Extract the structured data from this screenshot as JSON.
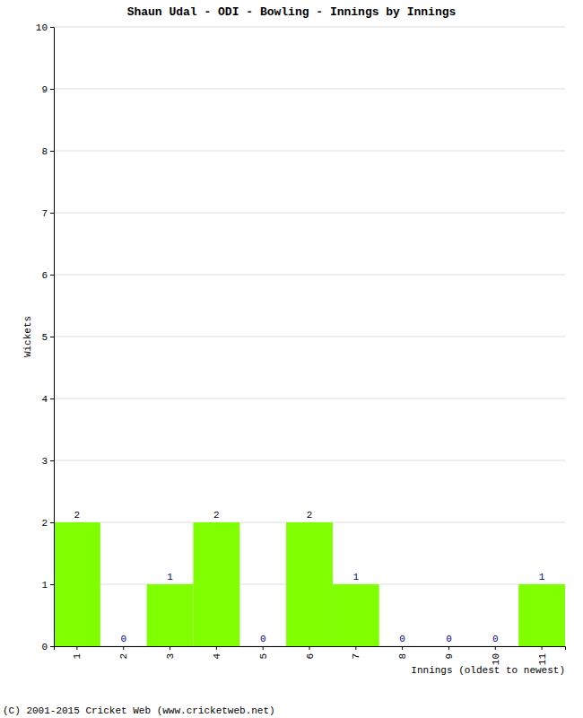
{
  "chart_data": {
    "type": "bar",
    "title": "Shaun Udal - ODI - Bowling - Innings by Innings",
    "xlabel": "Innings (oldest to newest)",
    "ylabel": "Wickets",
    "annotations": [
      "(C) 2001-2015 Cricket Web (www.cricketweb.net)"
    ],
    "categories": [
      "1",
      "2",
      "3",
      "4",
      "5",
      "6",
      "7",
      "8",
      "9",
      "10",
      "11"
    ],
    "values": [
      2,
      0,
      1,
      2,
      0,
      2,
      1,
      0,
      0,
      0,
      1
    ],
    "color": "#7fff00",
    "ylim": [
      0,
      10
    ],
    "yticks": [
      0,
      1,
      2,
      3,
      4,
      5,
      6,
      7,
      8,
      9,
      10
    ],
    "grid": true,
    "data_labels": true
  }
}
